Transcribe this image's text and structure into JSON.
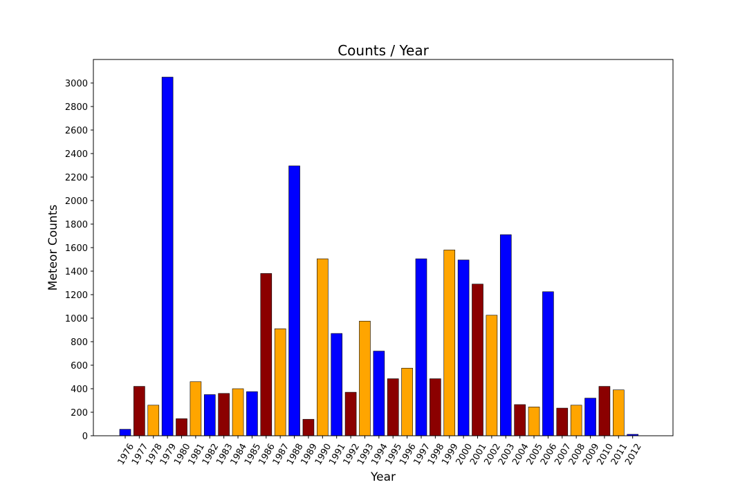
{
  "chart_data": {
    "type": "bar",
    "title": "Counts / Year",
    "xlabel": "Year",
    "ylabel": "Meteor Counts",
    "ylim": [
      0,
      3200
    ],
    "yticks": [
      0,
      200,
      400,
      600,
      800,
      1000,
      1200,
      1400,
      1600,
      1800,
      2000,
      2200,
      2400,
      2600,
      2800,
      3000
    ],
    "grid": false,
    "categories": [
      "1976",
      "1977",
      "1978",
      "1979",
      "1980",
      "1981",
      "1982",
      "1983",
      "1984",
      "1985",
      "1986",
      "1987",
      "1988",
      "1989",
      "1990",
      "1991",
      "1992",
      "1993",
      "1994",
      "1995",
      "1996",
      "1997",
      "1998",
      "1999",
      "2000",
      "2001",
      "2002",
      "2003",
      "2004",
      "2005",
      "2006",
      "2007",
      "2008",
      "2009",
      "2010",
      "2011",
      "2012"
    ],
    "values": [
      55,
      420,
      260,
      3050,
      145,
      460,
      350,
      360,
      400,
      375,
      1380,
      910,
      2295,
      140,
      1505,
      870,
      370,
      975,
      720,
      485,
      575,
      1505,
      485,
      1580,
      1495,
      1290,
      1025,
      1710,
      265,
      245,
      1225,
      235,
      260,
      320,
      420,
      390,
      12
    ],
    "bar_colors": [
      "#0000ff",
      "#8b0000",
      "#ffa500",
      "#0000ff",
      "#8b0000",
      "#ffa500",
      "#0000ff",
      "#8b0000",
      "#ffa500",
      "#0000ff",
      "#8b0000",
      "#ffa500",
      "#0000ff",
      "#8b0000",
      "#ffa500",
      "#0000ff",
      "#8b0000",
      "#ffa500",
      "#0000ff",
      "#8b0000",
      "#ffa500",
      "#0000ff",
      "#8b0000",
      "#ffa500",
      "#0000ff",
      "#8b0000",
      "#ffa500",
      "#0000ff",
      "#8b0000",
      "#ffa500",
      "#0000ff",
      "#8b0000",
      "#ffa500",
      "#0000ff",
      "#8b0000",
      "#ffa500",
      "#0000ff"
    ]
  }
}
